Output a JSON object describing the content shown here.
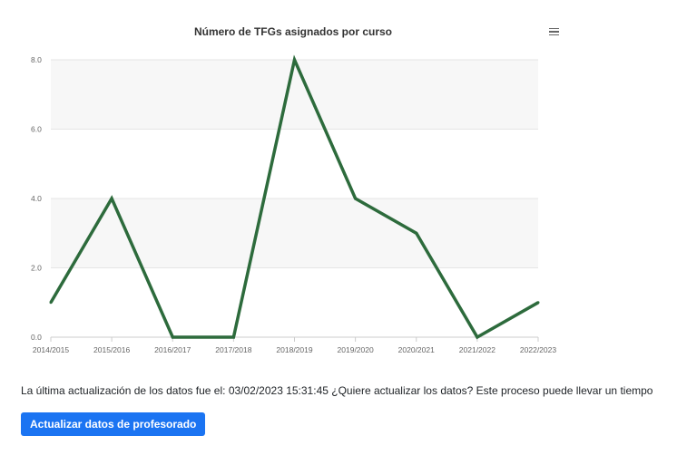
{
  "chart_data": {
    "type": "line",
    "title": "Número de TFGs asignados por curso",
    "xlabel": "",
    "ylabel": "",
    "categories": [
      "2014/2015",
      "2015/2016",
      "2016/2017",
      "2017/2018",
      "2018/2019",
      "2019/2020",
      "2020/2021",
      "2021/2022",
      "2022/2023"
    ],
    "series": [
      {
        "values": [
          1,
          4,
          0,
          0,
          8,
          4,
          3,
          0,
          1
        ]
      }
    ],
    "ylim": [
      0,
      8
    ],
    "yticks": [
      "0.0",
      "2.0",
      "4.0",
      "6.0",
      "8.0"
    ],
    "grid": true,
    "line_color": "#2d6b3c",
    "band_color": "#f7f7f7"
  },
  "chart_menu": {
    "icon": "hamburger-menu-icon"
  },
  "update": {
    "prefix": "La última actualización de los datos fue el:",
    "timestamp": "03/02/2023 15:31:45",
    "question": "¿Quiere actualizar los datos? Este proceso puede llevar un tiempo",
    "button_label": "Actualizar datos de profesorado",
    "button_color": "#1b74f2"
  }
}
